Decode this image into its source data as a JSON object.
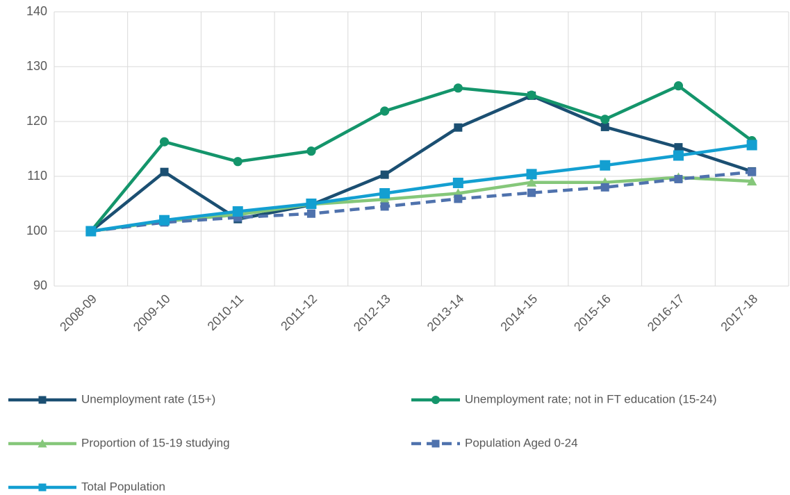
{
  "chart_data": {
    "type": "line",
    "categories": [
      "2008-09",
      "2009-10",
      "2010-11",
      "2011-12",
      "2012-13",
      "2013-14",
      "2014-15",
      "2015-16",
      "2016-17",
      "2017-18"
    ],
    "series": [
      {
        "name": "Unemployment rate (15+)",
        "color": "#1b4f72",
        "marker": "square",
        "dashed": false,
        "values": [
          100,
          110.8,
          102.2,
          104.8,
          110.3,
          118.9,
          124.7,
          119.0,
          115.3,
          110.9
        ]
      },
      {
        "name": "Unemployment rate; not in FT education (15-24)",
        "color": "#14956b",
        "marker": "circle",
        "dashed": false,
        "values": [
          100,
          116.3,
          112.7,
          114.6,
          121.9,
          126.1,
          124.8,
          120.4,
          126.5,
          116.5
        ]
      },
      {
        "name": "Proportion of 15-19 studying",
        "color": "#85c77a",
        "marker": "triangle",
        "dashed": false,
        "values": [
          100,
          101.8,
          103.0,
          104.9,
          105.8,
          106.9,
          108.9,
          108.9,
          109.8,
          109.1
        ]
      },
      {
        "name": "Population Aged 0-24",
        "color": "#4f72ad",
        "marker": "square",
        "dashed": true,
        "values": [
          100,
          101.6,
          102.5,
          103.2,
          104.5,
          105.9,
          107.0,
          108.0,
          109.5,
          110.8
        ]
      },
      {
        "name": "Total Population",
        "color": "#139fd1",
        "marker": "square",
        "dashed": false,
        "values": [
          100,
          102.0,
          103.6,
          105.0,
          106.9,
          108.8,
          110.4,
          112.0,
          113.8,
          115.7
        ]
      }
    ],
    "ylim": [
      90,
      140
    ],
    "yticks": [
      90,
      100,
      110,
      120,
      130,
      140
    ],
    "grid": true,
    "legend": "bottom"
  }
}
